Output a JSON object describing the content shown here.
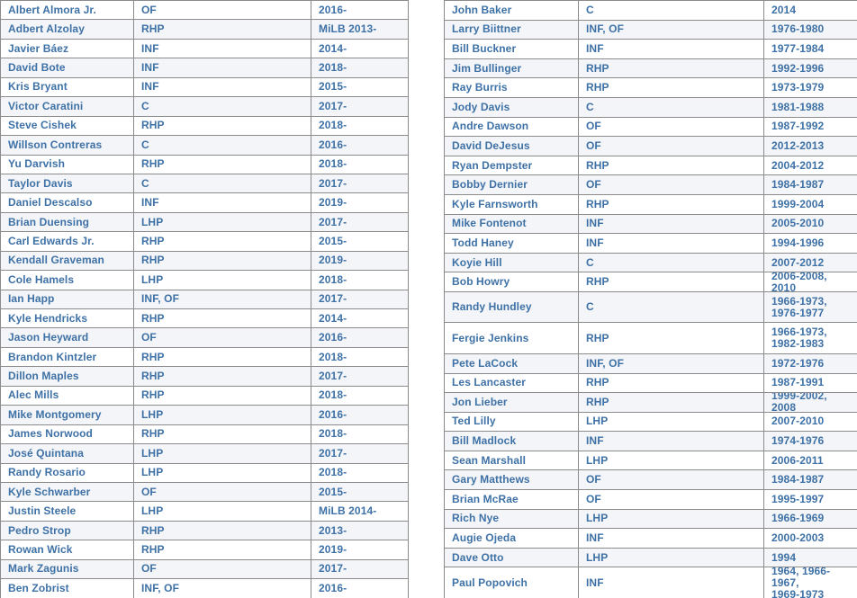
{
  "style": {
    "text_color": "#3e71a6",
    "border_color": "#8b8b8b",
    "row_color": "#ffffff",
    "alt_row_color": "#f4f5f8"
  },
  "tables": [
    {
      "id": "left-players-table",
      "rows": [
        {
          "name": "Albert Almora Jr.",
          "position": "OF",
          "years": "2016-"
        },
        {
          "name": "Adbert Alzolay",
          "position": "RHP",
          "years": "MiLB 2013-"
        },
        {
          "name": "Javier Báez",
          "position": "INF",
          "years": "2014-"
        },
        {
          "name": "David Bote",
          "position": "INF",
          "years": "2018-"
        },
        {
          "name": "Kris Bryant",
          "position": "INF",
          "years": "2015-"
        },
        {
          "name": "Victor Caratini",
          "position": "C",
          "years": "2017-"
        },
        {
          "name": "Steve Cishek",
          "position": "RHP",
          "years": "2018-"
        },
        {
          "name": "Willson Contreras",
          "position": "C",
          "years": "2016-"
        },
        {
          "name": "Yu Darvish",
          "position": "RHP",
          "years": "2018-"
        },
        {
          "name": "Taylor Davis",
          "position": "C",
          "years": "2017-"
        },
        {
          "name": "Daniel Descalso",
          "position": "INF",
          "years": "2019-"
        },
        {
          "name": "Brian Duensing",
          "position": "LHP",
          "years": "2017-"
        },
        {
          "name": "Carl Edwards Jr.",
          "position": "RHP",
          "years": "2015-"
        },
        {
          "name": "Kendall Graveman",
          "position": "RHP",
          "years": "2019-"
        },
        {
          "name": "Cole Hamels",
          "position": "LHP",
          "years": "2018-"
        },
        {
          "name": "Ian Happ",
          "position": "INF, OF",
          "years": "2017-"
        },
        {
          "name": "Kyle Hendricks",
          "position": "RHP",
          "years": "2014-"
        },
        {
          "name": "Jason Heyward",
          "position": "OF",
          "years": "2016-"
        },
        {
          "name": "Brandon Kintzler",
          "position": "RHP",
          "years": "2018-"
        },
        {
          "name": "Dillon Maples",
          "position": "RHP",
          "years": "2017-"
        },
        {
          "name": "Alec Mills",
          "position": "RHP",
          "years": "2018-"
        },
        {
          "name": "Mike Montgomery",
          "position": "LHP",
          "years": "2016-"
        },
        {
          "name": "James Norwood",
          "position": "RHP",
          "years": "2018-"
        },
        {
          "name": "José Quintana",
          "position": "LHP",
          "years": "2017-"
        },
        {
          "name": "Randy Rosario",
          "position": "LHP",
          "years": "2018-"
        },
        {
          "name": "Kyle Schwarber",
          "position": "OF",
          "years": "2015-"
        },
        {
          "name": "Justin Steele",
          "position": "LHP",
          "years": "MiLB 2014-"
        },
        {
          "name": "Pedro Strop",
          "position": "RHP",
          "years": "2013-"
        },
        {
          "name": "Rowan Wick",
          "position": "RHP",
          "years": "2019-"
        },
        {
          "name": "Mark Zagunis",
          "position": "OF",
          "years": "2017-"
        },
        {
          "name": "Ben Zobrist",
          "position": "INF, OF",
          "years": "2016-"
        }
      ]
    },
    {
      "id": "right-players-table",
      "rows": [
        {
          "name": "John Baker",
          "position": "C",
          "years": "2014"
        },
        {
          "name": "Larry Biittner",
          "position": "INF, OF",
          "years": "1976-1980"
        },
        {
          "name": "Bill Buckner",
          "position": "INF",
          "years": "1977-1984"
        },
        {
          "name": "Jim Bullinger",
          "position": "RHP",
          "years": "1992-1996"
        },
        {
          "name": "Ray Burris",
          "position": "RHP",
          "years": "1973-1979"
        },
        {
          "name": "Jody Davis",
          "position": "C",
          "years": "1981-1988"
        },
        {
          "name": "Andre Dawson",
          "position": "OF",
          "years": "1987-1992"
        },
        {
          "name": "David DeJesus",
          "position": "OF",
          "years": "2012-2013"
        },
        {
          "name": "Ryan Dempster",
          "position": "RHP",
          "years": "2004-2012"
        },
        {
          "name": "Bobby Dernier",
          "position": "OF",
          "years": "1984-1987"
        },
        {
          "name": "Kyle Farnsworth",
          "position": "RHP",
          "years": "1999-2004"
        },
        {
          "name": "Mike Fontenot",
          "position": "INF",
          "years": "2005-2010"
        },
        {
          "name": "Todd Haney",
          "position": "INF",
          "years": "1994-1996"
        },
        {
          "name": "Koyie Hill",
          "position": "C",
          "years": "2007-2012"
        },
        {
          "name": "Bob Howry",
          "position": "RHP",
          "years": "2006-2008, 2010"
        },
        {
          "name": "Randy Hundley",
          "position": "C",
          "years": "1966-1973,\n1976-1977"
        },
        {
          "name": "Fergie Jenkins",
          "position": "RHP",
          "years": "1966-1973,\n1982-1983"
        },
        {
          "name": "Pete LaCock",
          "position": "INF, OF",
          "years": "1972-1976"
        },
        {
          "name": "Les Lancaster",
          "position": "RHP",
          "years": "1987-1991"
        },
        {
          "name": "Jon Lieber",
          "position": "RHP",
          "years": "1999-2002, 2008"
        },
        {
          "name": "Ted Lilly",
          "position": "LHP",
          "years": "2007-2010"
        },
        {
          "name": "Bill Madlock",
          "position": "INF",
          "years": "1974-1976"
        },
        {
          "name": "Sean Marshall",
          "position": "LHP",
          "years": "2006-2011"
        },
        {
          "name": "Gary Matthews",
          "position": "OF",
          "years": "1984-1987"
        },
        {
          "name": "Brian McRae",
          "position": "OF",
          "years": "1995-1997"
        },
        {
          "name": "Rich Nye",
          "position": "LHP",
          "years": "1966-1969"
        },
        {
          "name": "Augie Ojeda",
          "position": "INF",
          "years": "2000-2003"
        },
        {
          "name": "Dave Otto",
          "position": "LHP",
          "years": "1994"
        },
        {
          "name": "Paul Popovich",
          "position": "INF",
          "years": "1964, 1966-1967,\n1969-1973"
        }
      ]
    }
  ]
}
